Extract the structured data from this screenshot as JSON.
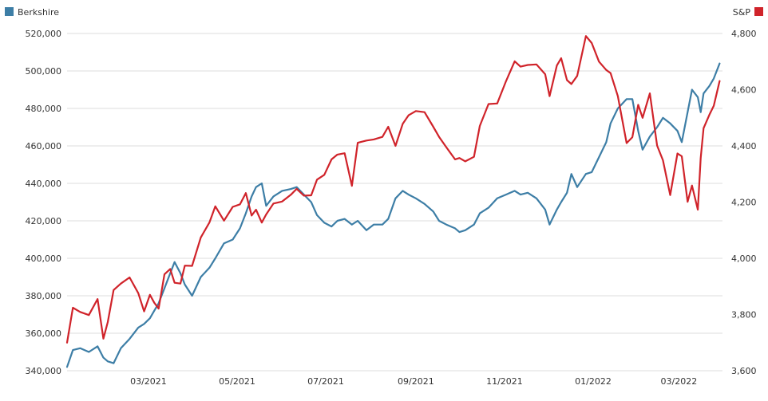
{
  "chart_data": {
    "type": "line",
    "title": "",
    "xlabel": "",
    "ylabel": "",
    "y_left_lim": [
      340000,
      520000
    ],
    "y_right_lim": [
      3600,
      4800
    ],
    "y_left_ticks": [
      "340,000",
      "360,000",
      "380,000",
      "400,000",
      "420,000",
      "440,000",
      "460,000",
      "480,000",
      "500,000",
      "520,000"
    ],
    "y_right_ticks": [
      "3,600",
      "3,800",
      "4,000",
      "4,200",
      "4,400",
      "4,600",
      "4,800"
    ],
    "x_tick_labels": [
      "03/2021",
      "05/2021",
      "07/2021",
      "09/2021",
      "11/2021",
      "01/2022",
      "03/2022"
    ],
    "x_tick_dates": [
      "2021-03-01",
      "2021-05-01",
      "2021-07-01",
      "2021-09-01",
      "2021-11-01",
      "2022-01-01",
      "2022-03-01"
    ],
    "x_range": [
      "2021-01-04",
      "2022-03-31"
    ],
    "grid": true,
    "legend": [
      "top-left",
      "top-right"
    ],
    "series": [
      {
        "name": "Berkshire",
        "axis": "left",
        "color": "#3d7ea6",
        "points": [
          [
            "2021-01-04",
            342000
          ],
          [
            "2021-01-08",
            351000
          ],
          [
            "2021-01-13",
            352000
          ],
          [
            "2021-01-19",
            350000
          ],
          [
            "2021-01-25",
            353000
          ],
          [
            "2021-01-29",
            347000
          ],
          [
            "2021-02-01",
            345000
          ],
          [
            "2021-02-05",
            344000
          ],
          [
            "2021-02-10",
            352000
          ],
          [
            "2021-02-16",
            357000
          ],
          [
            "2021-02-22",
            363000
          ],
          [
            "2021-02-26",
            365000
          ],
          [
            "2021-03-02",
            368000
          ],
          [
            "2021-03-05",
            372000
          ],
          [
            "2021-03-08",
            376000
          ],
          [
            "2021-03-12",
            384000
          ],
          [
            "2021-03-16",
            392000
          ],
          [
            "2021-03-19",
            398000
          ],
          [
            "2021-03-23",
            392000
          ],
          [
            "2021-03-26",
            386000
          ],
          [
            "2021-03-31",
            380000
          ],
          [
            "2021-04-06",
            390000
          ],
          [
            "2021-04-12",
            395000
          ],
          [
            "2021-04-16",
            400000
          ],
          [
            "2021-04-22",
            408000
          ],
          [
            "2021-04-28",
            410000
          ],
          [
            "2021-05-03",
            416000
          ],
          [
            "2021-05-07",
            424000
          ],
          [
            "2021-05-11",
            433000
          ],
          [
            "2021-05-14",
            438000
          ],
          [
            "2021-05-18",
            440000
          ],
          [
            "2021-05-21",
            428000
          ],
          [
            "2021-05-26",
            433000
          ],
          [
            "2021-06-01",
            436000
          ],
          [
            "2021-06-07",
            437000
          ],
          [
            "2021-06-11",
            438000
          ],
          [
            "2021-06-16",
            434000
          ],
          [
            "2021-06-21",
            430000
          ],
          [
            "2021-06-25",
            423000
          ],
          [
            "2021-06-30",
            419000
          ],
          [
            "2021-07-05",
            417000
          ],
          [
            "2021-07-09",
            420000
          ],
          [
            "2021-07-14",
            421000
          ],
          [
            "2021-07-19",
            418000
          ],
          [
            "2021-07-23",
            420000
          ],
          [
            "2021-07-29",
            415000
          ],
          [
            "2021-08-03",
            418000
          ],
          [
            "2021-08-09",
            418000
          ],
          [
            "2021-08-13",
            421000
          ],
          [
            "2021-08-18",
            432000
          ],
          [
            "2021-08-23",
            436000
          ],
          [
            "2021-08-27",
            434000
          ],
          [
            "2021-09-01",
            432000
          ],
          [
            "2021-09-07",
            429000
          ],
          [
            "2021-09-13",
            425000
          ],
          [
            "2021-09-17",
            420000
          ],
          [
            "2021-09-22",
            418000
          ],
          [
            "2021-09-28",
            416000
          ],
          [
            "2021-10-01",
            414000
          ],
          [
            "2021-10-05",
            415000
          ],
          [
            "2021-10-11",
            418000
          ],
          [
            "2021-10-15",
            424000
          ],
          [
            "2021-10-21",
            427000
          ],
          [
            "2021-10-27",
            432000
          ],
          [
            "2021-11-02",
            434000
          ],
          [
            "2021-11-08",
            436000
          ],
          [
            "2021-11-12",
            434000
          ],
          [
            "2021-11-17",
            435000
          ],
          [
            "2021-11-23",
            432000
          ],
          [
            "2021-11-29",
            426000
          ],
          [
            "2021-12-02",
            418000
          ],
          [
            "2021-12-07",
            426000
          ],
          [
            "2021-12-10",
            430000
          ],
          [
            "2021-12-14",
            435000
          ],
          [
            "2021-12-17",
            445000
          ],
          [
            "2021-12-21",
            438000
          ],
          [
            "2021-12-27",
            445000
          ],
          [
            "2021-12-31",
            446000
          ],
          [
            "2022-01-05",
            454000
          ],
          [
            "2022-01-10",
            462000
          ],
          [
            "2022-01-13",
            472000
          ],
          [
            "2022-01-18",
            480000
          ],
          [
            "2022-01-24",
            485000
          ],
          [
            "2022-01-28",
            485000
          ],
          [
            "2022-02-01",
            468000
          ],
          [
            "2022-02-04",
            458000
          ],
          [
            "2022-02-09",
            465000
          ],
          [
            "2022-02-14",
            470000
          ],
          [
            "2022-02-18",
            475000
          ],
          [
            "2022-02-23",
            472000
          ],
          [
            "2022-02-28",
            468000
          ],
          [
            "2022-03-03",
            462000
          ],
          [
            "2022-03-07",
            478000
          ],
          [
            "2022-03-10",
            490000
          ],
          [
            "2022-03-14",
            486000
          ],
          [
            "2022-03-16",
            478000
          ],
          [
            "2022-03-18",
            488000
          ],
          [
            "2022-03-22",
            492000
          ],
          [
            "2022-03-25",
            496000
          ],
          [
            "2022-03-29",
            504000
          ]
        ]
      },
      {
        "name": "S&P",
        "axis": "right",
        "color": "#d0232a",
        "points": [
          [
            "2021-01-04",
            3700
          ],
          [
            "2021-01-08",
            3824
          ],
          [
            "2021-01-13",
            3809
          ],
          [
            "2021-01-19",
            3798
          ],
          [
            "2021-01-25",
            3855
          ],
          [
            "2021-01-29",
            3714
          ],
          [
            "2021-02-01",
            3773
          ],
          [
            "2021-02-05",
            3887
          ],
          [
            "2021-02-10",
            3910
          ],
          [
            "2021-02-16",
            3932
          ],
          [
            "2021-02-22",
            3876
          ],
          [
            "2021-02-26",
            3811
          ],
          [
            "2021-03-02",
            3870
          ],
          [
            "2021-03-05",
            3842
          ],
          [
            "2021-03-08",
            3821
          ],
          [
            "2021-03-12",
            3943
          ],
          [
            "2021-03-16",
            3962
          ],
          [
            "2021-03-19",
            3913
          ],
          [
            "2021-03-23",
            3910
          ],
          [
            "2021-03-26",
            3974
          ],
          [
            "2021-03-31",
            3973
          ],
          [
            "2021-04-06",
            4074
          ],
          [
            "2021-04-12",
            4128
          ],
          [
            "2021-04-16",
            4185
          ],
          [
            "2021-04-22",
            4134
          ],
          [
            "2021-04-28",
            4183
          ],
          [
            "2021-05-03",
            4192
          ],
          [
            "2021-05-07",
            4232
          ],
          [
            "2021-05-11",
            4152
          ],
          [
            "2021-05-14",
            4173
          ],
          [
            "2021-05-18",
            4127
          ],
          [
            "2021-05-21",
            4156
          ],
          [
            "2021-05-26",
            4195
          ],
          [
            "2021-06-01",
            4202
          ],
          [
            "2021-06-07",
            4226
          ],
          [
            "2021-06-11",
            4247
          ],
          [
            "2021-06-16",
            4223
          ],
          [
            "2021-06-21",
            4224
          ],
          [
            "2021-06-25",
            4280
          ],
          [
            "2021-06-30",
            4297
          ],
          [
            "2021-07-05",
            4352
          ],
          [
            "2021-07-09",
            4369
          ],
          [
            "2021-07-14",
            4374
          ],
          [
            "2021-07-19",
            4258
          ],
          [
            "2021-07-23",
            4411
          ],
          [
            "2021-07-29",
            4419
          ],
          [
            "2021-08-03",
            4423
          ],
          [
            "2021-08-09",
            4432
          ],
          [
            "2021-08-13",
            4468
          ],
          [
            "2021-08-18",
            4400
          ],
          [
            "2021-08-23",
            4479
          ],
          [
            "2021-08-27",
            4509
          ],
          [
            "2021-09-01",
            4524
          ],
          [
            "2021-09-07",
            4520
          ],
          [
            "2021-09-13",
            4468
          ],
          [
            "2021-09-17",
            4432
          ],
          [
            "2021-09-22",
            4395
          ],
          [
            "2021-09-28",
            4352
          ],
          [
            "2021-10-01",
            4357
          ],
          [
            "2021-10-05",
            4345
          ],
          [
            "2021-10-11",
            4361
          ],
          [
            "2021-10-15",
            4471
          ],
          [
            "2021-10-21",
            4549
          ],
          [
            "2021-10-27",
            4551
          ],
          [
            "2021-11-02",
            4630
          ],
          [
            "2021-11-08",
            4701
          ],
          [
            "2021-11-12",
            4682
          ],
          [
            "2021-11-17",
            4688
          ],
          [
            "2021-11-23",
            4690
          ],
          [
            "2021-11-29",
            4655
          ],
          [
            "2021-12-02",
            4577
          ],
          [
            "2021-12-07",
            4686
          ],
          [
            "2021-12-10",
            4712
          ],
          [
            "2021-12-14",
            4634
          ],
          [
            "2021-12-17",
            4620
          ],
          [
            "2021-12-21",
            4649
          ],
          [
            "2021-12-27",
            4791
          ],
          [
            "2021-12-31",
            4766
          ],
          [
            "2022-01-05",
            4700
          ],
          [
            "2022-01-10",
            4670
          ],
          [
            "2022-01-13",
            4659
          ],
          [
            "2022-01-18",
            4577
          ],
          [
            "2022-01-24",
            4410
          ],
          [
            "2022-01-28",
            4431
          ],
          [
            "2022-02-01",
            4546
          ],
          [
            "2022-02-04",
            4500
          ],
          [
            "2022-02-09",
            4587
          ],
          [
            "2022-02-14",
            4401
          ],
          [
            "2022-02-18",
            4349
          ],
          [
            "2022-02-23",
            4225
          ],
          [
            "2022-02-28",
            4373
          ],
          [
            "2022-03-03",
            4363
          ],
          [
            "2022-03-07",
            4201
          ],
          [
            "2022-03-10",
            4259
          ],
          [
            "2022-03-14",
            4173
          ],
          [
            "2022-03-16",
            4357
          ],
          [
            "2022-03-18",
            4463
          ],
          [
            "2022-03-22",
            4511
          ],
          [
            "2022-03-25",
            4543
          ],
          [
            "2022-03-29",
            4631
          ]
        ]
      }
    ]
  }
}
